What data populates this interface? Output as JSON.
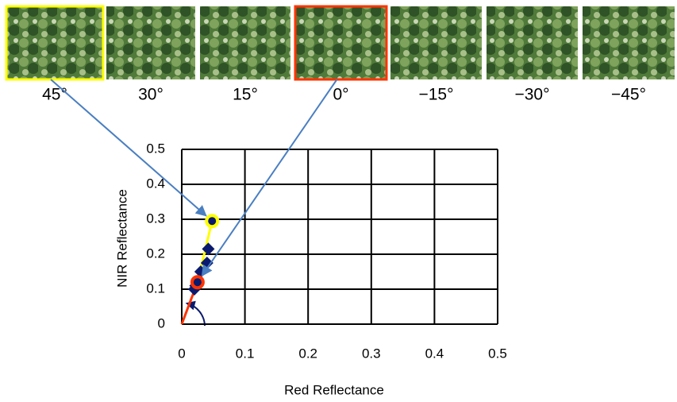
{
  "thumbnails": [
    {
      "label": "45°",
      "border": "#ffff00"
    },
    {
      "label": "30°"
    },
    {
      "label": "15°"
    },
    {
      "label": "0°",
      "border": "#ff3300"
    },
    {
      "label": "−15°"
    },
    {
      "label": "−30°"
    },
    {
      "label": "−45°"
    }
  ],
  "chart_data": {
    "type": "scatter",
    "xlabel": "Red Reflectance",
    "ylabel": "NIR Reflectance",
    "xlim": [
      0,
      0.5
    ],
    "ylim": [
      0,
      0.5
    ],
    "xticks": [
      0,
      0.1,
      0.2,
      0.3,
      0.4,
      0.5
    ],
    "yticks": [
      0,
      0.1,
      0.2,
      0.3,
      0.4,
      0.5
    ],
    "grid": true,
    "series": [
      {
        "color": "#0a1a6e",
        "x": [
          0.048,
          0.042,
          0.04,
          0.025,
          0.03,
          0.022,
          0.02
        ],
        "values": [
          0.295,
          0.215,
          0.175,
          0.12,
          0.15,
          0.11,
          0.1
        ]
      }
    ],
    "highlights": [
      {
        "index": 0,
        "color": "#ffff00"
      },
      {
        "index": 3,
        "color": "#ff3300"
      }
    ]
  }
}
